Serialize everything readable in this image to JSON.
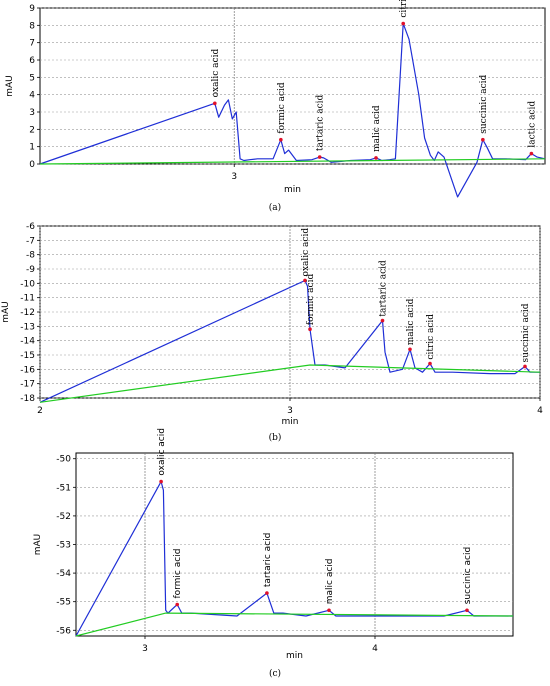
{
  "chart_data": [
    {
      "type": "line",
      "panel": "(a)",
      "xlabel": "min",
      "ylabel": "mAU",
      "ylim": [
        0,
        9
      ],
      "yticks": [
        0,
        1,
        2,
        3,
        4,
        5,
        6,
        7,
        8,
        9
      ],
      "xlim": [
        2.0,
        4.6
      ],
      "xticks": [
        3
      ],
      "grid": true,
      "series": [
        {
          "role": "chromatogram",
          "color": "#1f2fd6",
          "x": [
            2.0,
            2.9,
            2.92,
            2.95,
            2.97,
            2.99,
            3.01,
            3.03,
            3.05,
            3.08,
            3.12,
            3.2,
            3.24,
            3.26,
            3.28,
            3.32,
            3.4,
            3.44,
            3.46,
            3.5,
            3.6,
            3.7,
            3.73,
            3.76,
            3.8,
            3.83,
            3.87,
            3.9,
            3.95,
            3.98,
            4.01,
            4.03,
            4.05,
            4.08,
            4.15,
            4.25,
            4.28,
            4.3,
            4.33,
            4.4,
            4.5,
            4.53,
            4.56,
            4.6
          ],
          "y": [
            0.0,
            3.5,
            2.7,
            3.4,
            3.7,
            2.6,
            3.0,
            0.3,
            0.2,
            0.25,
            0.3,
            0.3,
            1.4,
            0.6,
            0.8,
            0.2,
            0.25,
            0.4,
            0.35,
            0.1,
            0.2,
            0.25,
            0.35,
            0.2,
            0.25,
            0.3,
            8.1,
            7.2,
            4.0,
            1.5,
            0.5,
            0.2,
            0.7,
            0.4,
            -1.9,
            0.1,
            1.4,
            1.0,
            0.3,
            0.3,
            0.25,
            0.6,
            0.4,
            0.3
          ]
        },
        {
          "role": "baseline",
          "color": "#22cc22",
          "x": [
            2.0,
            4.6
          ],
          "y": [
            0.0,
            0.3
          ]
        }
      ],
      "peaks": [
        {
          "label": "oxalic acid",
          "x": 2.9,
          "y": 3.5
        },
        {
          "label": "formic acid",
          "x": 3.24,
          "y": 1.4
        },
        {
          "label": "tartaric acid",
          "x": 3.44,
          "y": 0.4
        },
        {
          "label": "malic acid",
          "x": 3.73,
          "y": 0.35
        },
        {
          "label": "citric acid",
          "x": 3.87,
          "y": 8.1
        },
        {
          "label": "succinic acid",
          "x": 4.28,
          "y": 1.4
        },
        {
          "label": "lactic acid",
          "x": 4.53,
          "y": 0.6
        }
      ]
    },
    {
      "type": "line",
      "panel": "(b)",
      "xlabel": "min",
      "ylabel": "mAU",
      "ylim": [
        -18,
        -6
      ],
      "yticks": [
        -18,
        -17,
        -16,
        -15,
        -14,
        -13,
        -12,
        -11,
        -10,
        -9,
        -8,
        -7,
        -6
      ],
      "xlim": [
        2,
        4
      ],
      "xticks": [
        2,
        3,
        4
      ],
      "grid": true,
      "series": [
        {
          "role": "chromatogram",
          "color": "#1f2fd6",
          "x": [
            2.0,
            3.06,
            3.07,
            3.08,
            3.1,
            3.14,
            3.22,
            3.37,
            3.38,
            3.4,
            3.45,
            3.48,
            3.5,
            3.53,
            3.56,
            3.58,
            3.65,
            3.8,
            3.9,
            3.94,
            3.96,
            4.0
          ],
          "y": [
            -18.3,
            -9.8,
            -10.2,
            -13.2,
            -15.7,
            -15.7,
            -15.9,
            -12.6,
            -14.8,
            -16.2,
            -16.0,
            -14.6,
            -15.9,
            -16.2,
            -15.6,
            -16.2,
            -16.2,
            -16.3,
            -16.3,
            -15.8,
            -16.2,
            -16.2
          ]
        },
        {
          "role": "baseline",
          "color": "#22cc22",
          "x": [
            2.0,
            3.08,
            4.0
          ],
          "y": [
            -18.3,
            -15.7,
            -16.2
          ]
        }
      ],
      "peaks": [
        {
          "label": "oxalic acid",
          "x": 3.06,
          "y": -9.8
        },
        {
          "label": "formic acid",
          "x": 3.08,
          "y": -13.2
        },
        {
          "label": "tartaric acid",
          "x": 3.37,
          "y": -12.6
        },
        {
          "label": "malic acid",
          "x": 3.48,
          "y": -14.6
        },
        {
          "label": "citric acid",
          "x": 3.56,
          "y": -15.6
        },
        {
          "label": "succinic acid",
          "x": 3.94,
          "y": -15.8
        }
      ]
    },
    {
      "type": "line",
      "panel": "(c)",
      "xlabel": "min",
      "ylabel": "mAU",
      "ylim": [
        -56.2,
        -49.8
      ],
      "yticks": [
        -56,
        -55,
        -54,
        -53,
        -52,
        -51,
        -50
      ],
      "xlim": [
        2.7,
        4.6
      ],
      "xticks": [
        3,
        4
      ],
      "grid": true,
      "series": [
        {
          "role": "chromatogram",
          "color": "#1f2fd6",
          "x": [
            2.7,
            3.07,
            3.08,
            3.09,
            3.1,
            3.14,
            3.16,
            3.2,
            3.4,
            3.53,
            3.56,
            3.6,
            3.7,
            3.8,
            3.83,
            3.87,
            4.0,
            4.3,
            4.4,
            4.43,
            4.47,
            4.6
          ],
          "y": [
            -56.2,
            -50.8,
            -51.1,
            -55.3,
            -55.4,
            -55.1,
            -55.4,
            -55.4,
            -55.5,
            -54.7,
            -55.4,
            -55.4,
            -55.5,
            -55.3,
            -55.5,
            -55.5,
            -55.5,
            -55.5,
            -55.3,
            -55.5,
            -55.5,
            -55.5
          ]
        },
        {
          "role": "baseline",
          "color": "#22cc22",
          "x": [
            2.7,
            3.09,
            4.6
          ],
          "y": [
            -56.2,
            -55.4,
            -55.5
          ]
        }
      ],
      "peaks": [
        {
          "label": "oxalic acid",
          "x": 3.07,
          "y": -50.8
        },
        {
          "label": "formic acid",
          "x": 3.14,
          "y": -55.1
        },
        {
          "label": "tartaric acid",
          "x": 3.53,
          "y": -54.7
        },
        {
          "label": "malic acid",
          "x": 3.8,
          "y": -55.3
        },
        {
          "label": "succinic acid",
          "x": 4.4,
          "y": -55.3
        }
      ]
    }
  ]
}
